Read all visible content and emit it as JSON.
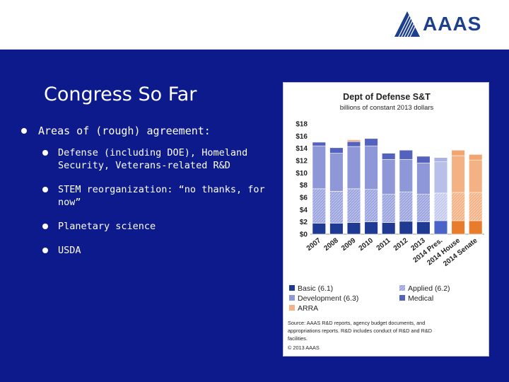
{
  "logo": {
    "text": "AAAS"
  },
  "slide": {
    "title": "Congress So Far",
    "bullets": [
      {
        "text": "Areas of (rough) agreement:",
        "children": [
          "Defense (including DOE), Homeland Security, Veterans-related R&D",
          "STEM reorganization: “no thanks, for now”",
          "Planetary science",
          "USDA"
        ]
      }
    ]
  },
  "colors": {
    "slide_bg": "#0d1a8c",
    "basic": "#1f3a93",
    "applied": "#8e97d8",
    "development": "#8e97d8",
    "medical": "#5562bd",
    "arra": "#f4b183",
    "orange_basic": "#e97b2c",
    "pres_light": "#b8bfe8"
  },
  "chart_data": {
    "type": "bar",
    "stacked": true,
    "title": "Dept of Defense S&T",
    "subtitle": "billions of constant 2013 dollars",
    "categories": [
      "2007",
      "2008",
      "2009",
      "2010",
      "2011",
      "2012",
      "2013",
      "2014 Pres.",
      "2014 House",
      "2014 Senate"
    ],
    "ylim": [
      0,
      18
    ],
    "yticks": [
      "$0",
      "$2",
      "$4",
      "$6",
      "$8",
      "$10",
      "$12",
      "$14",
      "$16",
      "$18"
    ],
    "series": [
      {
        "name": "Basic (6.1)",
        "values": [
          1.8,
          1.8,
          1.9,
          2.0,
          1.9,
          2.1,
          2.0,
          2.2,
          2.2,
          2.2
        ]
      },
      {
        "name": "Applied (6.2)",
        "values": [
          5.6,
          5.2,
          5.5,
          5.3,
          4.6,
          4.8,
          4.5,
          4.5,
          4.6,
          4.6
        ]
      },
      {
        "name": "Development (6.3)",
        "values": [
          7.0,
          6.2,
          6.9,
          7.1,
          5.7,
          5.3,
          5.1,
          5.1,
          6.0,
          5.3
        ]
      },
      {
        "name": "Medical",
        "values": [
          0.6,
          0.9,
          0.8,
          1.2,
          1.0,
          1.5,
          1.1,
          0.7,
          0.9,
          0.9
        ]
      },
      {
        "name": "ARRA",
        "values": [
          0,
          0,
          0.3,
          0,
          0,
          0,
          0,
          0,
          0,
          0
        ]
      }
    ],
    "legend": [
      {
        "label": "Basic (6.1)",
        "color": "#1f3a93",
        "pattern": false
      },
      {
        "label": "Applied (6.2)",
        "color": "#8e97d8",
        "pattern": true
      },
      {
        "label": "Development (6.3)",
        "color": "#8e97d8",
        "pattern": false
      },
      {
        "label": "Medical",
        "color": "#5562bd",
        "pattern": false
      },
      {
        "label": "ARRA",
        "color": "#f4b183",
        "pattern": false
      }
    ],
    "legend_position": "bottom",
    "grid": false,
    "source": "Source: AAAS R&D reports, agency budget documents, and appropriations reports. R&D includes conduct of R&D and R&D facilities.",
    "copyright": "© 2013 AAAS"
  }
}
